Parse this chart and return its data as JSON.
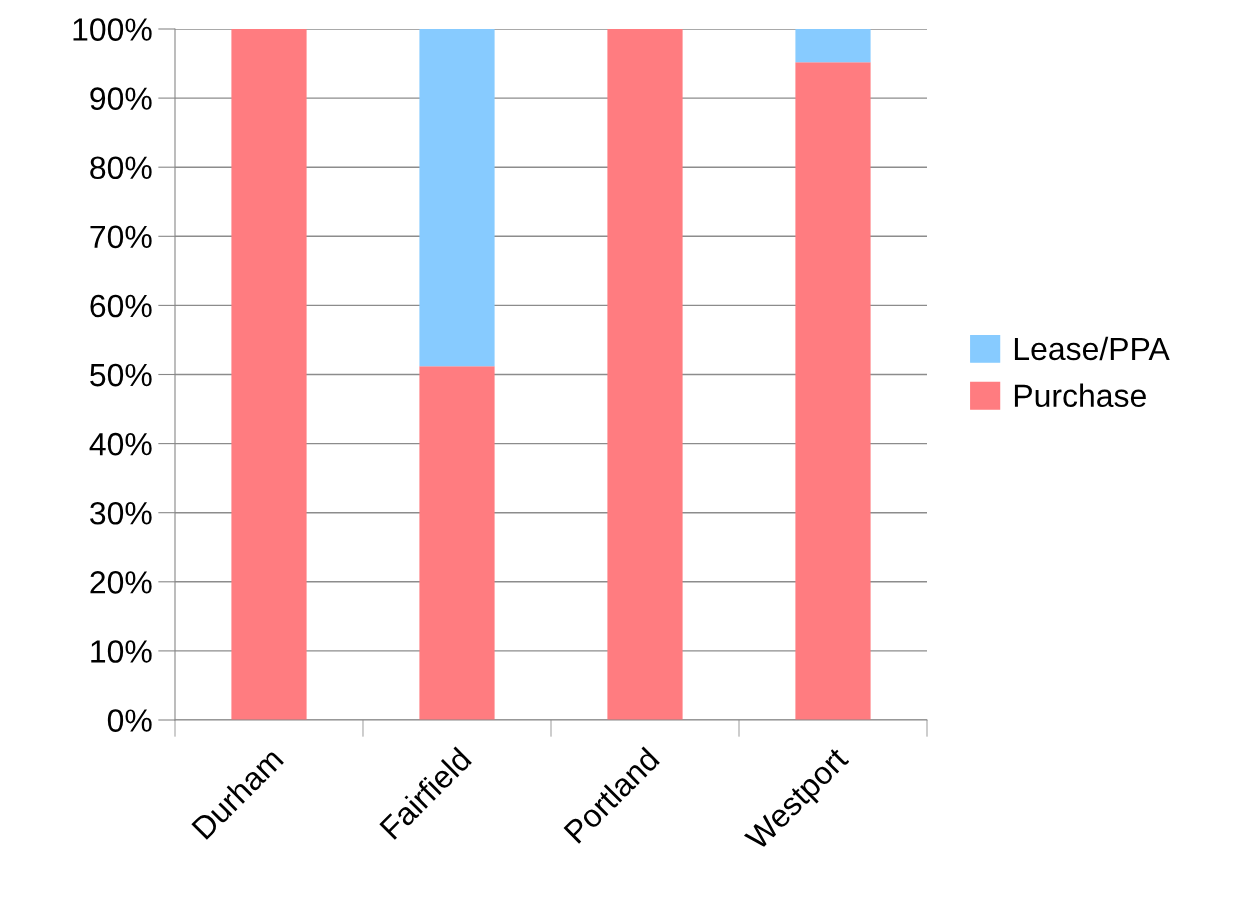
{
  "chart_data": {
    "type": "bar",
    "stacked": true,
    "categories": [
      "Durham",
      "Fairfield",
      "Portland",
      "Westport"
    ],
    "series": [
      {
        "name": "Purchase",
        "color": "#ff7c80",
        "values": [
          100,
          51.2,
          100,
          95.2
        ]
      },
      {
        "name": "Lease/PPA",
        "color": "#87cbff",
        "values": [
          0,
          48.8,
          0,
          4.8
        ]
      }
    ],
    "ylim": [
      0,
      100
    ],
    "yticks": [
      {
        "value": 0,
        "label": "0%"
      },
      {
        "value": 10,
        "label": "10%"
      },
      {
        "value": 20,
        "label": "20%"
      },
      {
        "value": 30,
        "label": "30%"
      },
      {
        "value": 40,
        "label": "40%"
      },
      {
        "value": 50,
        "label": "50%"
      },
      {
        "value": 60,
        "label": "60%"
      },
      {
        "value": 70,
        "label": "70%"
      },
      {
        "value": 80,
        "label": "80%"
      },
      {
        "value": 90,
        "label": "90%"
      },
      {
        "value": 100,
        "label": "100%"
      }
    ],
    "grid": "y",
    "legend": "right"
  }
}
